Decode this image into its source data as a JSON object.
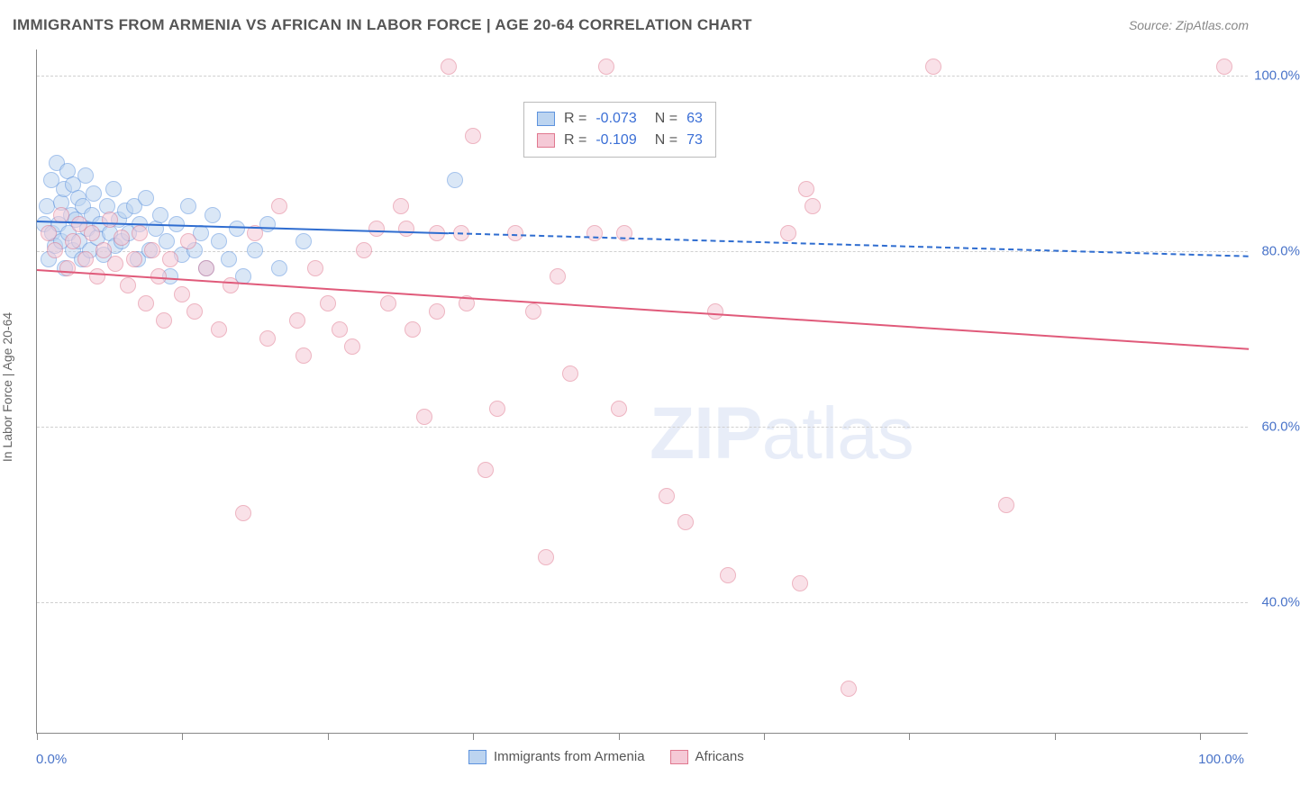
{
  "title": "IMMIGRANTS FROM ARMENIA VS AFRICAN IN LABOR FORCE | AGE 20-64 CORRELATION CHART",
  "source": "Source: ZipAtlas.com",
  "watermark_a": "ZIP",
  "watermark_b": "atlas",
  "y_axis_title": "In Labor Force | Age 20-64",
  "chart": {
    "type": "scatter",
    "background_color": "#ffffff",
    "grid_color": "#d0d0d0",
    "xlim": [
      0,
      100
    ],
    "ylim": [
      25,
      103
    ],
    "y_ticks": [
      40,
      60,
      80,
      100
    ],
    "y_tick_labels": [
      "40.0%",
      "60.0%",
      "80.0%",
      "100.0%"
    ],
    "x_ticks": [
      0,
      12,
      24,
      36,
      48,
      60,
      72,
      84,
      96
    ],
    "x_label_min": "0.0%",
    "x_label_max": "100.0%",
    "marker_radius": 9,
    "marker_border_width": 1.5,
    "series": [
      {
        "name": "Immigrants from Armenia",
        "fill": "#bcd4f0",
        "stroke": "#5d93de",
        "fill_opacity": 0.55,
        "R": "-0.073",
        "N": "63",
        "trend": {
          "x1": 0,
          "y1": 83.5,
          "x2": 100,
          "y2": 79.5,
          "solid_until_x": 34,
          "color": "#2f6dd0",
          "width": 2.5
        },
        "points": [
          [
            0.6,
            83
          ],
          [
            0.8,
            85
          ],
          [
            1.0,
            79
          ],
          [
            1.2,
            88
          ],
          [
            1.3,
            82
          ],
          [
            1.5,
            80.5
          ],
          [
            1.6,
            90
          ],
          [
            1.8,
            83
          ],
          [
            2.0,
            85.5
          ],
          [
            2.0,
            81
          ],
          [
            2.2,
            87
          ],
          [
            2.3,
            78
          ],
          [
            2.5,
            89
          ],
          [
            2.6,
            82
          ],
          [
            2.8,
            84
          ],
          [
            3.0,
            80
          ],
          [
            3.0,
            87.5
          ],
          [
            3.2,
            83.5
          ],
          [
            3.4,
            86
          ],
          [
            3.5,
            81
          ],
          [
            3.7,
            79
          ],
          [
            3.8,
            85
          ],
          [
            4.0,
            88.5
          ],
          [
            4.2,
            82.5
          ],
          [
            4.4,
            80
          ],
          [
            4.5,
            84
          ],
          [
            4.7,
            86.5
          ],
          [
            5.0,
            81.5
          ],
          [
            5.2,
            83
          ],
          [
            5.5,
            79.5
          ],
          [
            5.8,
            85
          ],
          [
            6.0,
            82
          ],
          [
            6.3,
            87
          ],
          [
            6.5,
            80.5
          ],
          [
            6.8,
            83.5
          ],
          [
            7.0,
            81
          ],
          [
            7.3,
            84.5
          ],
          [
            7.6,
            82
          ],
          [
            8.0,
            85
          ],
          [
            8.3,
            79
          ],
          [
            8.5,
            83
          ],
          [
            9.0,
            86
          ],
          [
            9.3,
            80
          ],
          [
            9.8,
            82.5
          ],
          [
            10.2,
            84
          ],
          [
            10.7,
            81
          ],
          [
            11.0,
            77
          ],
          [
            11.5,
            83
          ],
          [
            12.0,
            79.5
          ],
          [
            12.5,
            85
          ],
          [
            13.0,
            80
          ],
          [
            13.5,
            82
          ],
          [
            14.0,
            78
          ],
          [
            14.5,
            84
          ],
          [
            15.0,
            81
          ],
          [
            15.8,
            79
          ],
          [
            16.5,
            82.5
          ],
          [
            17.0,
            77
          ],
          [
            18.0,
            80
          ],
          [
            19.0,
            83
          ],
          [
            20.0,
            78
          ],
          [
            22.0,
            81
          ],
          [
            34.5,
            88
          ]
        ]
      },
      {
        "name": "Africans",
        "fill": "#f5c9d6",
        "stroke": "#e0788f",
        "fill_opacity": 0.55,
        "R": "-0.109",
        "N": "73",
        "trend": {
          "x1": 0,
          "y1": 78.0,
          "x2": 100,
          "y2": 69.0,
          "solid_until_x": 100,
          "color": "#e05a7a",
          "width": 2.5
        },
        "points": [
          [
            1.0,
            82
          ],
          [
            1.5,
            80
          ],
          [
            2.0,
            84
          ],
          [
            2.5,
            78
          ],
          [
            3.0,
            81
          ],
          [
            3.5,
            83
          ],
          [
            4.0,
            79
          ],
          [
            4.5,
            82
          ],
          [
            5.0,
            77
          ],
          [
            5.5,
            80
          ],
          [
            6.0,
            83.5
          ],
          [
            6.5,
            78.5
          ],
          [
            7.0,
            81.5
          ],
          [
            7.5,
            76
          ],
          [
            8.0,
            79
          ],
          [
            8.5,
            82
          ],
          [
            9.0,
            74
          ],
          [
            9.5,
            80
          ],
          [
            10.0,
            77
          ],
          [
            10.5,
            72
          ],
          [
            11.0,
            79
          ],
          [
            12.0,
            75
          ],
          [
            12.5,
            81
          ],
          [
            13.0,
            73
          ],
          [
            14.0,
            78
          ],
          [
            15.0,
            71
          ],
          [
            16.0,
            76
          ],
          [
            17.0,
            50
          ],
          [
            18.0,
            82
          ],
          [
            19.0,
            70
          ],
          [
            20.0,
            85
          ],
          [
            21.5,
            72
          ],
          [
            22.0,
            68
          ],
          [
            23.0,
            78
          ],
          [
            24.0,
            74
          ],
          [
            25.0,
            71
          ],
          [
            26.0,
            69
          ],
          [
            27.0,
            80
          ],
          [
            28.0,
            82.5
          ],
          [
            29.0,
            74
          ],
          [
            30.0,
            85
          ],
          [
            30.5,
            82.5
          ],
          [
            31.0,
            71
          ],
          [
            32.0,
            61
          ],
          [
            33.0,
            73
          ],
          [
            34.0,
            101
          ],
          [
            35.0,
            82
          ],
          [
            35.5,
            74
          ],
          [
            36.0,
            93
          ],
          [
            37.0,
            55
          ],
          [
            38.0,
            62
          ],
          [
            39.5,
            82
          ],
          [
            41.0,
            73
          ],
          [
            42.0,
            45
          ],
          [
            43.0,
            77
          ],
          [
            44.0,
            66
          ],
          [
            47.0,
            101
          ],
          [
            48.0,
            62
          ],
          [
            48.5,
            82
          ],
          [
            52.0,
            52
          ],
          [
            53.5,
            49
          ],
          [
            56.0,
            73
          ],
          [
            57.0,
            43
          ],
          [
            62.0,
            82
          ],
          [
            63.0,
            42
          ],
          [
            63.5,
            87
          ],
          [
            64.0,
            85
          ],
          [
            67.0,
            30
          ],
          [
            74.0,
            101
          ],
          [
            80.0,
            51
          ],
          [
            98.0,
            101
          ],
          [
            33.0,
            82
          ],
          [
            46.0,
            82
          ]
        ]
      }
    ]
  },
  "legend_top": {
    "r_label": "R =",
    "n_label": "N ="
  },
  "legend_bottom": {
    "series1": "Immigrants from Armenia",
    "series2": "Africans"
  }
}
